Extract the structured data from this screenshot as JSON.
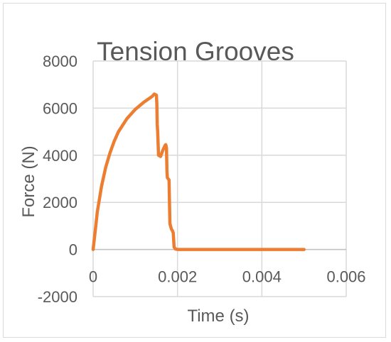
{
  "chart_data": {
    "type": "line",
    "title": "Tension Grooves",
    "xlabel": "Time (s)",
    "ylabel": "Force (N)",
    "xlim": [
      0,
      0.006
    ],
    "ylim": [
      -2000,
      8000
    ],
    "x_ticks": [
      0,
      0.002,
      0.004,
      0.006
    ],
    "x_tick_labels": [
      "0",
      "0.002",
      "0.004",
      "0.006"
    ],
    "y_ticks": [
      -2000,
      0,
      2000,
      4000,
      6000,
      8000
    ],
    "y_tick_labels": [
      "-2000",
      "0",
      "2000",
      "4000",
      "6000",
      "8000"
    ],
    "grid": true,
    "legend": "none",
    "series": [
      {
        "color": "#ED7D31",
        "x": [
          0,
          5e-05,
          0.0001,
          0.0002,
          0.0003,
          0.0004,
          0.0005,
          0.0006,
          0.0008,
          0.001,
          0.0012,
          0.0014,
          0.00145,
          0.0015,
          0.00151,
          0.00152,
          0.00153,
          0.00155,
          0.0016,
          0.00165,
          0.0017,
          0.00172,
          0.00173,
          0.00174,
          0.00175,
          0.00176,
          0.00178,
          0.0018,
          0.00181,
          0.00182,
          0.00185,
          0.00186,
          0.00188,
          0.0019,
          0.00192,
          0.00195,
          0.002,
          0.003,
          0.004,
          0.005
        ],
        "y": [
          0,
          800,
          1600,
          2700,
          3500,
          4100,
          4600,
          5000,
          5550,
          5950,
          6250,
          6500,
          6600,
          6550,
          6200,
          5300,
          5000,
          4000,
          3950,
          4200,
          4400,
          4450,
          4400,
          4300,
          3400,
          3050,
          3000,
          2950,
          2000,
          1100,
          900,
          850,
          800,
          700,
          100,
          20,
          0,
          0,
          0,
          0
        ]
      }
    ]
  }
}
